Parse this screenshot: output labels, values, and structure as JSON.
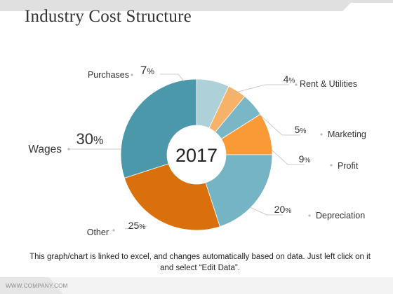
{
  "slide": {
    "title": "Industry Cost Structure",
    "caption": "This graph/chart is linked to excel, and changes automatically based on data. Just left click on it and select “Edit Data”.",
    "footer": "WWW.COMPANY.COM"
  },
  "colors": {
    "background": "#ffffff",
    "title": "#333333",
    "topbar": "#e0e0e0",
    "footer_band": "#e6e6e6",
    "leader": "#bdbdbd"
  },
  "chart_data": {
    "type": "pie",
    "style": "donut",
    "center_label": "2017",
    "slices": [
      {
        "label": "Purchases",
        "value": 7,
        "value_text": "7",
        "unit": "%",
        "color": "#aed0d9"
      },
      {
        "label": "Rent & Utilities",
        "value": 4,
        "value_text": "4",
        "unit": "%",
        "color": "#f7b26a"
      },
      {
        "label": "Marketing",
        "value": 5,
        "value_text": "5",
        "unit": "%",
        "color": "#79b7c6"
      },
      {
        "label": "Profit",
        "value": 9,
        "value_text": "9",
        "unit": "%",
        "color": "#f99a36"
      },
      {
        "label": "Depreciation",
        "value": 20,
        "value_text": "20",
        "unit": "%",
        "color": "#75b4c4"
      },
      {
        "label": "Other",
        "value": 25,
        "value_text": "25",
        "unit": "%",
        "color": "#d9700b"
      },
      {
        "label": "Wages",
        "value": 30,
        "value_text": "30",
        "unit": "%",
        "color": "#4a98aa"
      }
    ]
  }
}
